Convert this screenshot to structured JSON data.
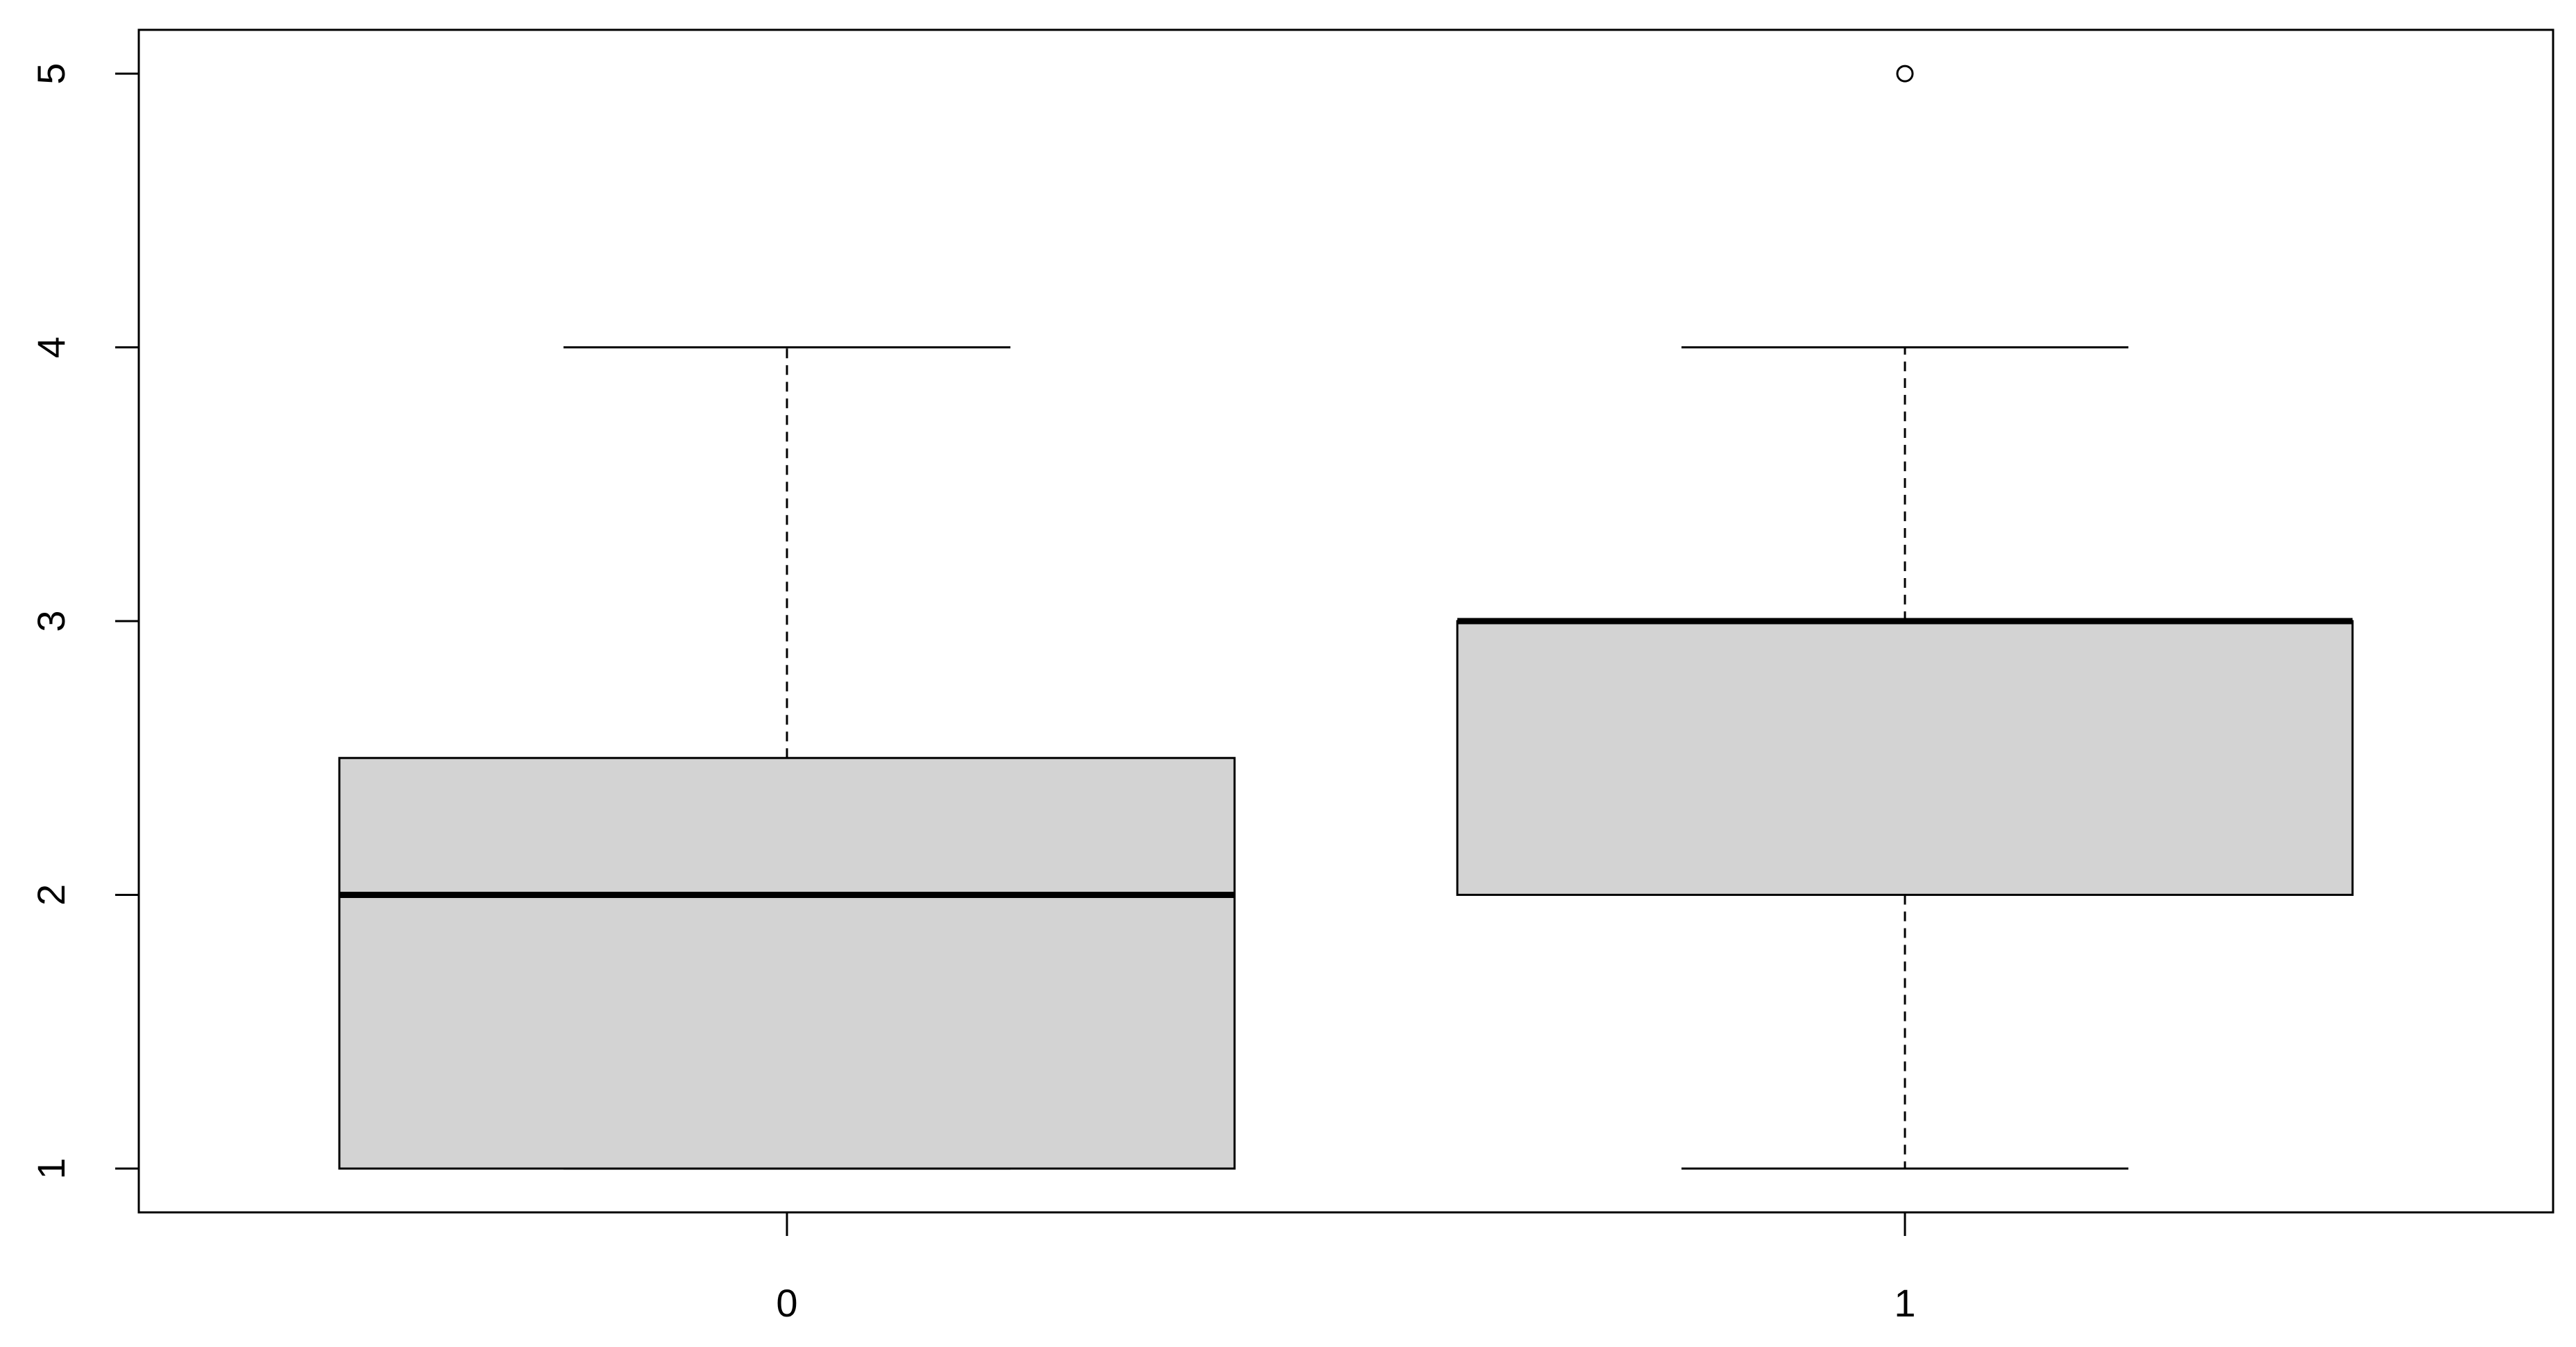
{
  "chart_data": {
    "type": "box",
    "categories": [
      "0",
      "1"
    ],
    "boxes": [
      {
        "min": 1,
        "q1": 1,
        "median": 2,
        "q3": 2.5,
        "max": 4
      },
      {
        "min": 1,
        "q1": 2,
        "median": 3,
        "q3": 3,
        "max": 4,
        "outliers": [
          5
        ]
      }
    ],
    "color": "#d3d3d3",
    "ylim": [
      0.84,
      5.16
    ],
    "yticks": [
      1,
      2,
      3,
      4,
      5
    ]
  }
}
